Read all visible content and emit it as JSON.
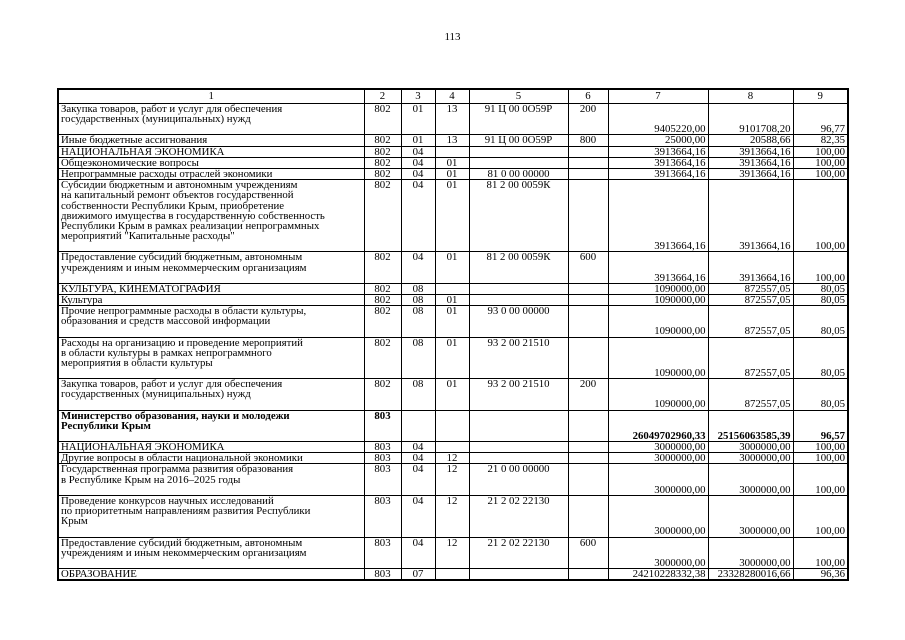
{
  "page": {
    "number": "113"
  },
  "table": {
    "headers": [
      "1",
      "2",
      "3",
      "4",
      "5",
      "6",
      "7",
      "8",
      "9"
    ],
    "rows": [
      {
        "name": "Закупка товаров, работ и услуг для обеспечения\nгосударственных (муниципальных) нужд",
        "cols": [
          "802",
          "01",
          "13",
          "91 Ц 00 0О59Р",
          "200",
          "9405220,00",
          "9101708,20",
          "96,77"
        ],
        "bold": false,
        "pad": 1
      },
      {
        "name": "Иные бюджетные ассигнования",
        "cols": [
          "802",
          "01",
          "13",
          "91 Ц 00 0О59Р",
          "800",
          "25000,00",
          "20588,66",
          "82,35"
        ],
        "bold": false,
        "pad": 0
      },
      {
        "name": "НАЦИОНАЛЬНАЯ ЭКОНОМИКА",
        "cols": [
          "802",
          "04",
          "",
          "",
          "",
          "3913664,16",
          "3913664,16",
          "100,00"
        ],
        "bold": false,
        "pad": 0
      },
      {
        "name": "Общеэкономические вопросы",
        "cols": [
          "802",
          "04",
          "01",
          "",
          "",
          "3913664,16",
          "3913664,16",
          "100,00"
        ],
        "bold": false,
        "pad": 0
      },
      {
        "name": "Непрограммные расходы отраслей экономики",
        "cols": [
          "802",
          "04",
          "01",
          "81 0 00 00000",
          "",
          "3913664,16",
          "3913664,16",
          "100,00"
        ],
        "bold": false,
        "pad": 0
      },
      {
        "name": "Субсидии бюджетным и автономным учреждениям\nна капитальный ремонт объектов государственной\nсобственности Республики Крым, приобретение\nдвижимого имущества в государственную собственность\nРеспублики Крым в рамках реализации непрограммных\nмероприятий \"Капитальные расходы\"",
        "cols": [
          "802",
          "04",
          "01",
          "81 2 00 0059К",
          "",
          "3913664,16",
          "3913664,16",
          "100,00"
        ],
        "bold": false,
        "pad": 1
      },
      {
        "name": "Предоставление субсидий бюджетным, автономным\nучреждениям и иным некоммерческим организациям",
        "cols": [
          "802",
          "04",
          "01",
          "81 2 00 0059К",
          "600",
          "3913664,16",
          "3913664,16",
          "100,00"
        ],
        "bold": false,
        "pad": 1
      },
      {
        "name": "КУЛЬТУРА, КИНЕМАТОГРАФИЯ",
        "cols": [
          "802",
          "08",
          "",
          "",
          "",
          "1090000,00",
          "872557,05",
          "80,05"
        ],
        "bold": false,
        "pad": 0
      },
      {
        "name": "Культура",
        "cols": [
          "802",
          "08",
          "01",
          "",
          "",
          "1090000,00",
          "872557,05",
          "80,05"
        ],
        "bold": false,
        "pad": 0
      },
      {
        "name": "Прочие непрограммные расходы в области культуры,\nобразования и средств массовой информации",
        "cols": [
          "802",
          "08",
          "01",
          "93 0 00 00000",
          "",
          "1090000,00",
          "872557,05",
          "80,05"
        ],
        "bold": false,
        "pad": 1
      },
      {
        "name": "Расходы на организацию и проведение мероприятий\nв области культуры в рамках непрограммного\nмероприятия в области культуры",
        "cols": [
          "802",
          "08",
          "01",
          "93 2 00 21510",
          "",
          "1090000,00",
          "872557,05",
          "80,05"
        ],
        "bold": false,
        "pad": 1
      },
      {
        "name": "Закупка товаров, работ и услуг для обеспечения\nгосударственных (муниципальных) нужд",
        "cols": [
          "802",
          "08",
          "01",
          "93 2 00 21510",
          "200",
          "1090000,00",
          "872557,05",
          "80,05"
        ],
        "bold": false,
        "pad": 1
      },
      {
        "name": "Министерство образования, науки и молодежи\nРеспублики Крым",
        "cols": [
          "803",
          "",
          "",
          "",
          "",
          "26049702960,33",
          "25156063585,39",
          "96,57"
        ],
        "bold": true,
        "pad": 1
      },
      {
        "name": "НАЦИОНАЛЬНАЯ ЭКОНОМИКА",
        "cols": [
          "803",
          "04",
          "",
          "",
          "",
          "3000000,00",
          "3000000,00",
          "100,00"
        ],
        "bold": false,
        "pad": 0
      },
      {
        "name": "Другие вопросы в области национальной экономики",
        "cols": [
          "803",
          "04",
          "12",
          "",
          "",
          "3000000,00",
          "3000000,00",
          "100,00"
        ],
        "bold": false,
        "pad": 0
      },
      {
        "name": "Государственная программа развития образования\nв Республике Крым на 2016–2025 годы",
        "cols": [
          "803",
          "04",
          "12",
          "21 0 00 00000",
          "",
          "3000000,00",
          "3000000,00",
          "100,00"
        ],
        "bold": false,
        "pad": 1
      },
      {
        "name": "Проведение конкурсов научных исследований\nпо приоритетным направлениям развития Республики\nКрым",
        "cols": [
          "803",
          "04",
          "12",
          "21 2 02 22130",
          "",
          "3000000,00",
          "3000000,00",
          "100,00"
        ],
        "bold": false,
        "pad": 1
      },
      {
        "name": "Предоставление субсидий бюджетным, автономным\nучреждениям и иным некоммерческим организациям",
        "cols": [
          "803",
          "04",
          "12",
          "21 2 02 22130",
          "600",
          "3000000,00",
          "3000000,00",
          "100,00"
        ],
        "bold": false,
        "pad": 1
      },
      {
        "name": "ОБРАЗОВАНИЕ",
        "cols": [
          "803",
          "07",
          "",
          "",
          "",
          "24210228332,38",
          "23328280016,66",
          "96,36"
        ],
        "bold": false,
        "pad": 0
      }
    ]
  }
}
